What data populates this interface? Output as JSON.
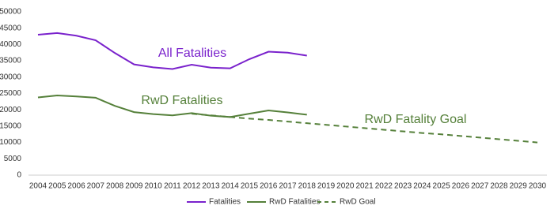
{
  "chart_data": {
    "type": "line",
    "x": [
      2004,
      2005,
      2006,
      2007,
      2008,
      2009,
      2010,
      2011,
      2012,
      2013,
      2014,
      2015,
      2016,
      2017,
      2018,
      2019,
      2020,
      2021,
      2022,
      2023,
      2024,
      2025,
      2026,
      2027,
      2028,
      2029,
      2030
    ],
    "xlim": [
      2004,
      2030
    ],
    "ylim": [
      0,
      50000
    ],
    "yticks": [
      0,
      5000,
      10000,
      15000,
      20000,
      25000,
      30000,
      35000,
      40000,
      45000,
      50000
    ],
    "grid": false,
    "legend": "bottom",
    "series": [
      {
        "name": "Fatalities",
        "color": "#7a22cc",
        "line_style": "solid",
        "values": [
          43000,
          43500,
          42700,
          41300,
          37400,
          33900,
          33000,
          32500,
          33800,
          32900,
          32700,
          35500,
          37800,
          37500,
          36600,
          null,
          null,
          null,
          null,
          null,
          null,
          null,
          null,
          null,
          null,
          null,
          null
        ]
      },
      {
        "name": "RwD Fatalities",
        "color": "#55803a",
        "line_style": "solid",
        "values": [
          23800,
          24400,
          24100,
          23700,
          21200,
          19300,
          18700,
          18300,
          19000,
          18200,
          17800,
          18800,
          19800,
          19200,
          18500,
          null,
          null,
          null,
          null,
          null,
          null,
          null,
          null,
          null,
          null,
          null,
          null
        ]
      },
      {
        "name": "RwD Goal",
        "color": "#55803a",
        "line_style": "dashed",
        "values": [
          null,
          null,
          null,
          null,
          null,
          null,
          null,
          null,
          18800,
          18300,
          17800,
          17300,
          16900,
          16400,
          15900,
          15400,
          14900,
          14400,
          13900,
          13400,
          12900,
          12500,
          12000,
          11500,
          11000,
          10500,
          10000
        ]
      }
    ],
    "annotations": [
      {
        "text": "All Fatalities",
        "color": "#7a22cc"
      },
      {
        "text": "RwD Fatalities",
        "color": "#55803a"
      },
      {
        "text": "RwD Fatality Goal",
        "color": "#55803a"
      }
    ]
  }
}
